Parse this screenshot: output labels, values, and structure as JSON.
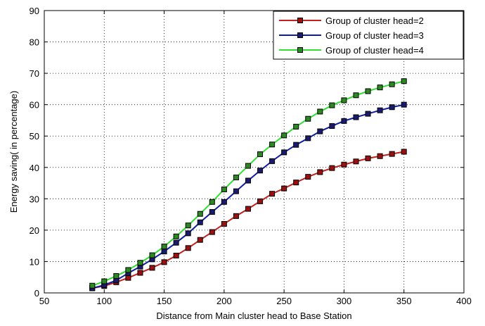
{
  "chart_data": {
    "type": "line",
    "title": "",
    "xlabel": "Distance from Main cluster head  to Base Station",
    "ylabel": "Energy saving( in percentage)",
    "xlim": [
      50,
      400
    ],
    "ylim": [
      0,
      90
    ],
    "xticks": [
      50,
      100,
      150,
      200,
      250,
      300,
      350,
      400
    ],
    "yticks": [
      0,
      10,
      20,
      30,
      40,
      50,
      60,
      70,
      80,
      90
    ],
    "xtick_labels": [
      "50",
      "100",
      "150",
      "200",
      "250",
      "300",
      "350",
      "400"
    ],
    "ytick_labels": [
      "0",
      "10",
      "20",
      "30",
      "40",
      "50",
      "60",
      "70",
      "80",
      "90"
    ],
    "grid": true,
    "legend_position": "top-right",
    "x": [
      90,
      100,
      110,
      120,
      130,
      140,
      150,
      160,
      170,
      180,
      190,
      200,
      210,
      220,
      230,
      240,
      250,
      260,
      270,
      280,
      290,
      300,
      310,
      320,
      330,
      340,
      350
    ],
    "series": [
      {
        "name": "Group of cluster head=2",
        "color": "#c0211d",
        "marker_fill": "#9b1010",
        "values": [
          1.5,
          2.2,
          3.4,
          4.8,
          6.4,
          8.0,
          9.8,
          11.9,
          14.3,
          16.9,
          19.4,
          22.0,
          24.5,
          26.8,
          29.2,
          31.6,
          33.3,
          35.2,
          37.0,
          38.5,
          39.8,
          40.9,
          41.9,
          42.9,
          43.6,
          44.3,
          45.0
        ]
      },
      {
        "name": "Group of cluster head=3",
        "color": "#0c1ca3",
        "marker_fill": "#1a1a6e",
        "values": [
          1.5,
          2.5,
          4.0,
          6.3,
          8.4,
          10.7,
          13.2,
          16.0,
          19.0,
          22.5,
          25.8,
          29.0,
          32.4,
          35.8,
          39.0,
          42.0,
          44.8,
          47.2,
          49.3,
          51.5,
          53.2,
          54.8,
          56.0,
          57.1,
          58.2,
          59.2,
          60.0
        ]
      },
      {
        "name": "Group of cluster head=4",
        "color": "#2fe02f",
        "marker_fill": "#2a8a20",
        "values": [
          2.3,
          3.7,
          5.4,
          7.3,
          9.6,
          12.0,
          14.8,
          18.0,
          21.5,
          25.2,
          29.0,
          33.0,
          36.8,
          40.5,
          44.2,
          47.3,
          50.2,
          53.0,
          55.5,
          57.8,
          59.8,
          61.4,
          63.0,
          64.3,
          65.5,
          66.5,
          67.5
        ]
      }
    ]
  }
}
